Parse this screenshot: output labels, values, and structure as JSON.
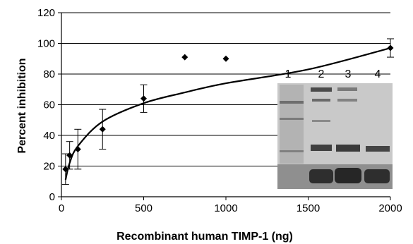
{
  "chart_data": {
    "type": "scatter",
    "title": "",
    "xlabel": "Recombinant human TIMP-1 (ng)",
    "ylabel": "Percent inhibition",
    "xlim": [
      0,
      2000
    ],
    "ylim": [
      0,
      120
    ],
    "x_ticks": [
      "0",
      "500",
      "1000",
      "1500",
      "2000"
    ],
    "y_ticks": [
      "0",
      "20",
      "40",
      "60",
      "80",
      "100",
      "120"
    ],
    "grid": "horizontal",
    "legend": "none",
    "series": [
      {
        "marker": "diamond",
        "points": [
          {
            "x": 25,
            "y": 18,
            "err": 10
          },
          {
            "x": 50,
            "y": 27,
            "err": 9
          },
          {
            "x": 100,
            "y": 31,
            "err": 13
          },
          {
            "x": 250,
            "y": 44,
            "err": 13
          },
          {
            "x": 500,
            "y": 64,
            "err": 9
          },
          {
            "x": 750,
            "y": 91,
            "err": 0
          },
          {
            "x": 1000,
            "y": 90,
            "err": 0
          },
          {
            "x": 2000,
            "y": 97,
            "err": 6
          }
        ]
      }
    ],
    "fit": {
      "type": "logarithmic",
      "points": [
        [
          25,
          11
        ],
        [
          50,
          22
        ],
        [
          100,
          33
        ],
        [
          250,
          49
        ],
        [
          500,
          61
        ],
        [
          750,
          68
        ],
        [
          1000,
          74
        ],
        [
          1500,
          83
        ],
        [
          2000,
          97
        ]
      ]
    },
    "inset": {
      "type": "gel image",
      "lane_labels": [
        "1",
        "2",
        "3",
        "4"
      ]
    },
    "colors": {
      "marker": "#000000",
      "grid": "#000000",
      "gel_background": "#c9c9c9",
      "gel_band": "#3a3a3a"
    }
  }
}
